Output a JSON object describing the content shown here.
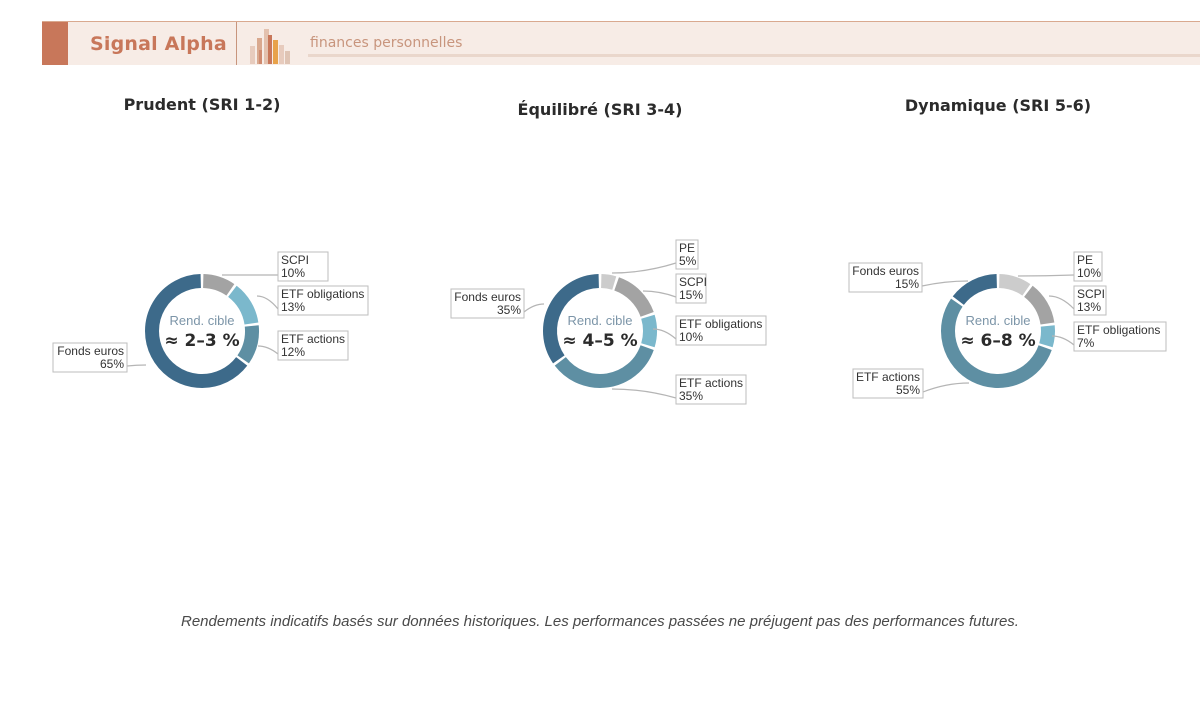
{
  "header": {
    "brand": "Signal Alpha",
    "tagline": "finances personnelles"
  },
  "colors": {
    "brand": "#c8775a",
    "fonds_euros": "#3d6a8a",
    "etf_actions": "#5e8fa3",
    "etf_obligations": "#7bb8cc",
    "scpi": "#a3a3a3",
    "pe": "#cccccc"
  },
  "chart_data": [
    {
      "type": "donut",
      "title": "Prudent (SRI 1-2)",
      "center_label": "Rend. cible",
      "center_value": "≈ 2–3 %",
      "slices": [
        {
          "name": "SCPI",
          "value": 10,
          "pct_label": "10%",
          "color": "#a3a3a3"
        },
        {
          "name": "ETF obligations",
          "value": 13,
          "pct_label": "13%",
          "color": "#7bb8cc"
        },
        {
          "name": "ETF actions",
          "value": 12,
          "pct_label": "12%",
          "color": "#5e8fa3"
        },
        {
          "name": "Fonds euros",
          "value": 65,
          "pct_label": "65%",
          "color": "#3d6a8a"
        }
      ]
    },
    {
      "type": "donut",
      "title": "Équilibré (SRI 3-4)",
      "center_label": "Rend. cible",
      "center_value": "≈ 4–5 %",
      "slices": [
        {
          "name": "PE",
          "value": 5,
          "pct_label": "5%",
          "color": "#cccccc"
        },
        {
          "name": "SCPI",
          "value": 15,
          "pct_label": "15%",
          "color": "#a3a3a3"
        },
        {
          "name": "ETF obligations",
          "value": 10,
          "pct_label": "10%",
          "color": "#7bb8cc"
        },
        {
          "name": "ETF actions",
          "value": 35,
          "pct_label": "35%",
          "color": "#5e8fa3"
        },
        {
          "name": "Fonds euros",
          "value": 35,
          "pct_label": "35%",
          "color": "#3d6a8a"
        }
      ]
    },
    {
      "type": "donut",
      "title": "Dynamique (SRI 5-6)",
      "center_label": "Rend. cible",
      "center_value": "≈ 6–8 %",
      "slices": [
        {
          "name": "PE",
          "value": 10,
          "pct_label": "10%",
          "color": "#cccccc"
        },
        {
          "name": "SCPI",
          "value": 13,
          "pct_label": "13%",
          "color": "#a3a3a3"
        },
        {
          "name": "ETF obligations",
          "value": 7,
          "pct_label": "7%",
          "color": "#7bb8cc"
        },
        {
          "name": "ETF actions",
          "value": 55,
          "pct_label": "55%",
          "color": "#5e8fa3"
        },
        {
          "name": "Fonds euros",
          "value": 15,
          "pct_label": "15%",
          "color": "#3d6a8a"
        }
      ]
    }
  ],
  "footer": {
    "note": "Rendements indicatifs basés sur données historiques. Les performances passées ne préjugent pas des performances futures."
  }
}
